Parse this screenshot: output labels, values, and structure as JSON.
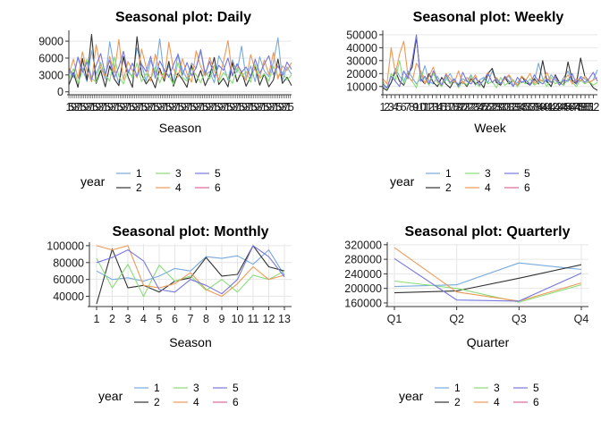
{
  "colors": {
    "year1": "#77aadd",
    "year2": "#333333",
    "year3": "#88dd77",
    "year4": "#ee9955",
    "year5": "#7777dd",
    "year6": "#dd6699",
    "grid": "#e6e6e6",
    "axis": "#333333"
  },
  "chart_data": [
    {
      "type": "line",
      "title": "Seasonal plot: Daily",
      "xlabel": "Season",
      "ylabel": "",
      "xlim": [
        1,
        366
      ],
      "ylim": [
        -200,
        10600
      ],
      "yticks": [
        0,
        3000,
        6000,
        9000
      ],
      "ytick_labels": [
        "0",
        "3000",
        "6000",
        "9000"
      ],
      "xtick_note": "dense overlapping day ticks 1-366",
      "legend": {
        "title": "year",
        "position": "bottom",
        "entries": [
          "1",
          "2",
          "3",
          "4",
          "5",
          "6"
        ]
      },
      "series_note": "daily values per year, range approx 0-10000",
      "series": [
        {
          "name": "1",
          "x_start": 1,
          "values": [
            3800,
            2500,
            6200,
            4100,
            1800,
            7300,
            3100,
            5200,
            2200,
            8900,
            4300,
            1500,
            6100,
            3500,
            2800,
            7800,
            4900,
            1900,
            5600,
            3300,
            9400,
            2600,
            4700,
            1700,
            6800,
            3900,
            2300,
            5100,
            4200,
            7200,
            2900,
            3600,
            1600,
            6400,
            4800,
            2100,
            5700,
            3400,
            8100,
            2400,
            4600,
            1800,
            6200,
            3700,
            2700,
            5300,
            9600,
            2000,
            4400,
            3100
          ]
        },
        {
          "name": "2",
          "x_start": 1,
          "values": [
            1200,
            3400,
            800,
            5900,
            2100,
            10200,
            1500,
            3800,
            900,
            4600,
            2300,
            1100,
            6300,
            2700,
            800,
            9800,
            3100,
            1400,
            2600,
            700,
            4200,
            1900,
            5400,
            1000,
            3300,
            2200,
            800,
            4700,
            1600,
            3800,
            1100,
            2900,
            6100,
            1300,
            2400,
            900,
            5200,
            1800,
            3600,
            1000,
            2700,
            4400,
            1200,
            3200,
            900,
            2100,
            5800,
            1500,
            2600,
            1100
          ]
        },
        {
          "name": "3",
          "x_start": 1,
          "values": [
            2200,
            4100,
            1500,
            3600,
            5800,
            2400,
            1700,
            4900,
            3100,
            1900,
            6200,
            2800,
            1400,
            3900,
            2500,
            5100,
            1800,
            3300,
            2200,
            4400,
            1600,
            3700,
            2900,
            1300,
            5200,
            2600,
            1900,
            4100,
            3000,
            1600,
            3800,
            2300,
            4700,
            1800,
            3400,
            2500,
            1500,
            4200,
            2800,
            3600,
            1700,
            4900,
            2400,
            3200,
            1900,
            4600,
            2700,
            3500,
            2100,
            3000
          ]
        },
        {
          "name": "4",
          "x_start": 1,
          "values": [
            3100,
            5800,
            2400,
            7100,
            3600,
            1800,
            8400,
            4200,
            2700,
            6300,
            3300,
            9300,
            2100,
            5400,
            3800,
            2500,
            7600,
            4400,
            1900,
            6700,
            3500,
            2300,
            8800,
            4100,
            2600,
            5900,
            3200,
            1700,
            7300,
            4500,
            2800,
            6100,
            3700,
            2200,
            5300,
            9100,
            2900,
            4800,
            3400,
            2000,
            6600,
            3900,
            2500,
            5700,
            3100,
            7000,
            2300,
            4600,
            3800,
            5200
          ]
        },
        {
          "name": "5",
          "x_start": 1,
          "values": [
            4200,
            2800,
            6100,
            3500,
            5300,
            2200,
            4700,
            6800,
            3100,
            5600,
            2500,
            4400,
            7200,
            3300,
            5100,
            2700,
            4900,
            3600,
            6300,
            2400,
            5500,
            3900,
            2600,
            4800,
            6600,
            3000,
            5200,
            2900,
            4300,
            7500,
            3200,
            5400,
            2600,
            4700,
            3800,
            6000,
            2800,
            5000,
            3500,
            4400,
            2700,
            5800,
            3300,
            4900,
            6400,
            3100,
            4600,
            2900,
            5300,
            4000
          ]
        },
        {
          "name": "6",
          "x_start": 1,
          "values": []
        }
      ]
    },
    {
      "type": "line",
      "title": "Seasonal plot: Weekly",
      "xlabel": "Week",
      "ylabel": "",
      "xlim": [
        1,
        53
      ],
      "ylim": [
        5000,
        52000
      ],
      "yticks": [
        10000,
        20000,
        30000,
        40000,
        50000
      ],
      "ytick_labels": [
        "10000",
        "20000",
        "30000",
        "40000",
        "50000"
      ],
      "xtick_note": "dense overlapping week ticks 1-52",
      "legend": {
        "title": "year",
        "position": "bottom",
        "entries": [
          "1",
          "2",
          "3",
          "4",
          "5",
          "6"
        ]
      },
      "series": [
        {
          "name": "1",
          "x_start": 1,
          "values": [
            10000,
            9000,
            13000,
            24000,
            18000,
            14000,
            22000,
            17000,
            12000,
            16000,
            26000,
            14000,
            12000,
            18000,
            11000,
            15000,
            20000,
            13000,
            12000,
            16000,
            14000,
            19000,
            11000,
            15000,
            17000,
            13000,
            22000,
            14000,
            12000,
            16000,
            18000,
            11000,
            13000,
            17000,
            15000,
            12000,
            14000,
            28000,
            16000,
            13000,
            19000,
            15000,
            11000,
            17000,
            22000,
            14000,
            12000,
            18000,
            16000,
            13000,
            15000,
            23000
          ]
        },
        {
          "name": "2",
          "x_start": 1,
          "values": [
            9000,
            7000,
            13000,
            22000,
            14000,
            11000,
            19000,
            25000,
            48000,
            16000,
            12000,
            20000,
            13000,
            10000,
            17000,
            12000,
            9000,
            15000,
            11000,
            14000,
            10000,
            16000,
            12000,
            14000,
            9000,
            20000,
            24000,
            13000,
            11000,
            17000,
            12000,
            15000,
            10000,
            18000,
            13000,
            11000,
            16000,
            12000,
            30000,
            14000,
            10000,
            19000,
            13000,
            11000,
            29000,
            15000,
            12000,
            32000,
            18000,
            14000,
            9000,
            7000
          ]
        },
        {
          "name": "3",
          "x_start": 1,
          "values": [
            14000,
            8000,
            20000,
            15000,
            30000,
            12000,
            18000,
            14000,
            9000,
            22000,
            16000,
            11000,
            20000,
            13000,
            10000,
            17000,
            12000,
            15000,
            9000,
            14000,
            11000,
            18000,
            13000,
            10000,
            16000,
            12000,
            14000,
            9000,
            17000,
            11000,
            13000,
            15000,
            10000,
            14000,
            12000,
            16000,
            11000,
            13000,
            15000,
            10000,
            17000,
            12000,
            14000,
            11000,
            16000,
            13000,
            10000,
            15000,
            12000,
            14000,
            11000,
            13000
          ]
        },
        {
          "name": "4",
          "x_start": 1,
          "values": [
            16000,
            12000,
            40000,
            20000,
            35000,
            45000,
            18000,
            14000,
            28000,
            22000,
            12000,
            18000,
            25000,
            14000,
            11000,
            20000,
            16000,
            13000,
            22000,
            12000,
            17000,
            14000,
            19000,
            11000,
            15000,
            21000,
            13000,
            17000,
            12000,
            16000,
            19000,
            14000,
            11000,
            18000,
            15000,
            20000,
            12000,
            16000,
            14000,
            21000,
            13000,
            17000,
            11000,
            15000,
            19000,
            12000,
            16000,
            14000,
            18000,
            13000,
            15000,
            17000
          ]
        },
        {
          "name": "5",
          "x_start": 1,
          "values": [
            12000,
            9000,
            18000,
            14000,
            10000,
            22000,
            16000,
            30000,
            50000,
            14000,
            18000,
            12000,
            22000,
            15000,
            11000,
            19000,
            13000,
            16000,
            10000,
            21000,
            14000,
            12000,
            17000,
            11000,
            15000,
            20000,
            13000,
            16000,
            12000,
            18000,
            14000,
            10000,
            17000,
            13000,
            15000,
            11000,
            19000,
            14000,
            12000,
            16000,
            13000,
            18000,
            11000,
            15000,
            14000,
            20000,
            12000,
            17000,
            13000,
            16000,
            21000,
            14000
          ]
        },
        {
          "name": "6",
          "x_start": 1,
          "values": []
        }
      ]
    },
    {
      "type": "line",
      "title": "Seasonal plot: Monthly",
      "xlabel": "Season",
      "ylabel": "",
      "categories": [
        "1",
        "2",
        "3",
        "4",
        "5",
        "6",
        "7",
        "8",
        "9",
        "10",
        "11",
        "12",
        "13"
      ],
      "ylim": [
        30000,
        102000
      ],
      "yticks": [
        40000,
        60000,
        80000,
        100000
      ],
      "ytick_labels": [
        "40000",
        "60000",
        "80000",
        "100000"
      ],
      "legend": {
        "title": "year",
        "position": "bottom",
        "entries": [
          "1",
          "2",
          "3",
          "4",
          "5",
          "6"
        ]
      },
      "series": [
        {
          "name": "1",
          "values": [
            70000,
            60000,
            62000,
            58000,
            64000,
            73000,
            70000,
            87000,
            85000,
            88000,
            78000,
            95000,
            65000
          ]
        },
        {
          "name": "2",
          "values": [
            31000,
            96000,
            50000,
            53000,
            45000,
            58000,
            62000,
            86000,
            64000,
            66000,
            100000,
            75000,
            70000
          ]
        },
        {
          "name": "3",
          "values": [
            85000,
            50000,
            78000,
            40000,
            77000,
            58000,
            64000,
            47000,
            60000,
            45000,
            65000,
            60000,
            70000
          ]
        },
        {
          "name": "4",
          "values": [
            100000,
            95000,
            100000,
            53000,
            50000,
            55000,
            68000,
            48000,
            40000,
            55000,
            75000,
            60000,
            65000
          ]
        },
        {
          "name": "5",
          "values": [
            80000,
            86000,
            95000,
            82000,
            48000,
            45000,
            60000,
            53000,
            43000,
            60000,
            100000,
            87000,
            63000
          ]
        }
      ]
    },
    {
      "type": "line",
      "title": "Seasonal plot: Quarterly",
      "xlabel": "Quarter",
      "ylabel": "",
      "categories": [
        "Q1",
        "Q2",
        "Q3",
        "Q4"
      ],
      "ylim": [
        155000,
        322000
      ],
      "yticks": [
        160000,
        200000,
        240000,
        280000,
        320000
      ],
      "ytick_labels": [
        "160000",
        "200000",
        "240000",
        "280000",
        "320000"
      ],
      "legend": {
        "title": "year",
        "position": "bottom",
        "entries": [
          "1",
          "2",
          "3",
          "4",
          "5",
          "6"
        ]
      },
      "series": [
        {
          "name": "1",
          "values": [
            205000,
            210000,
            270000,
            252000
          ]
        },
        {
          "name": "2",
          "values": [
            188000,
            193000,
            228000,
            265000
          ]
        },
        {
          "name": "3",
          "values": [
            220000,
            200000,
            162000,
            210000
          ]
        },
        {
          "name": "4",
          "values": [
            312000,
            190000,
            165000,
            215000
          ]
        },
        {
          "name": "5",
          "values": [
            282000,
            168000,
            165000,
            242000
          ]
        }
      ]
    }
  ]
}
